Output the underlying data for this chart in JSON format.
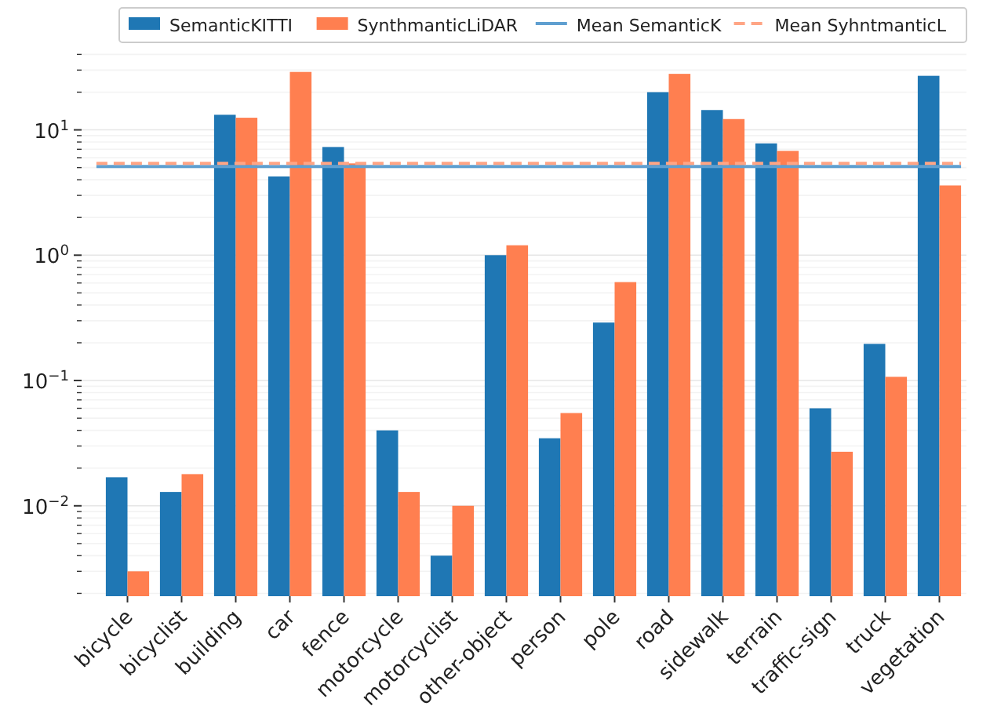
{
  "chart_data": {
    "type": "bar",
    "categories": [
      "bicycle",
      "bicyclist",
      "building",
      "car",
      "fence",
      "motorcycle",
      "motorcyclist",
      "other-object",
      "person",
      "pole",
      "road",
      "sidewalk",
      "terrain",
      "traffic-sign",
      "truck",
      "vegetation"
    ],
    "series": [
      {
        "name": "SemanticKITTI",
        "color": "#1f77b4",
        "values": [
          0.0169,
          0.0129,
          13.2,
          4.25,
          7.3,
          0.04,
          0.004,
          1.0,
          0.0346,
          0.29,
          20,
          14.4,
          7.8,
          0.06,
          0.196,
          27
        ]
      },
      {
        "name": "SynthmanticLiDAR",
        "color": "#ff7f50",
        "values": [
          0.003,
          0.0179,
          12.5,
          29,
          5.4,
          0.0129,
          0.01,
          1.2,
          0.055,
          0.61,
          28,
          12.2,
          6.8,
          0.027,
          0.107,
          3.6
        ]
      }
    ],
    "ref_lines": [
      {
        "axis": "y",
        "value": 5.1,
        "label": "Mean SemanticK",
        "color": "#5f9fd0",
        "line_style": "solid"
      },
      {
        "axis": "y",
        "value": 5.4,
        "label": "Mean SyhntmanticL",
        "color": "#ffa585",
        "line_style": "dashed"
      }
    ],
    "log": "y",
    "ylim": [
      0.0019,
      42
    ],
    "yticks": [
      {
        "value": 0.002,
        "label": null
      },
      {
        "value": 0.003,
        "label": null
      },
      {
        "value": 0.004,
        "label": null
      },
      {
        "value": 0.005,
        "label": null
      },
      {
        "value": 0.006,
        "label": null
      },
      {
        "value": 0.007,
        "label": null
      },
      {
        "value": 0.008,
        "label": null
      },
      {
        "value": 0.009,
        "label": null
      },
      {
        "value": 0.01,
        "label": "10$^{−2}$"
      },
      {
        "value": 0.02,
        "label": null
      },
      {
        "value": 0.03,
        "label": null
      },
      {
        "value": 0.04,
        "label": null
      },
      {
        "value": 0.05,
        "label": null
      },
      {
        "value": 0.06,
        "label": null
      },
      {
        "value": 0.07,
        "label": null
      },
      {
        "value": 0.08,
        "label": null
      },
      {
        "value": 0.09,
        "label": null
      },
      {
        "value": 0.1,
        "label": "10$^{−1}$"
      },
      {
        "value": 0.2,
        "label": null
      },
      {
        "value": 0.3,
        "label": null
      },
      {
        "value": 0.4,
        "label": null
      },
      {
        "value": 0.5,
        "label": null
      },
      {
        "value": 0.6,
        "label": null
      },
      {
        "value": 0.7,
        "label": null
      },
      {
        "value": 0.8,
        "label": null
      },
      {
        "value": 0.9,
        "label": null
      },
      {
        "value": 1,
        "label": "10$^{0}$"
      },
      {
        "value": 2,
        "label": null
      },
      {
        "value": 3,
        "label": null
      },
      {
        "value": 4,
        "label": null
      },
      {
        "value": 5,
        "label": null
      },
      {
        "value": 6,
        "label": null
      },
      {
        "value": 7,
        "label": null
      },
      {
        "value": 8,
        "label": null
      },
      {
        "value": 9,
        "label": null
      },
      {
        "value": 10,
        "label": "10$^{1}$"
      },
      {
        "value": 20,
        "label": null
      },
      {
        "value": 30,
        "label": null
      },
      {
        "value": 40,
        "label": null
      }
    ],
    "grid": "y",
    "legend": "top"
  }
}
